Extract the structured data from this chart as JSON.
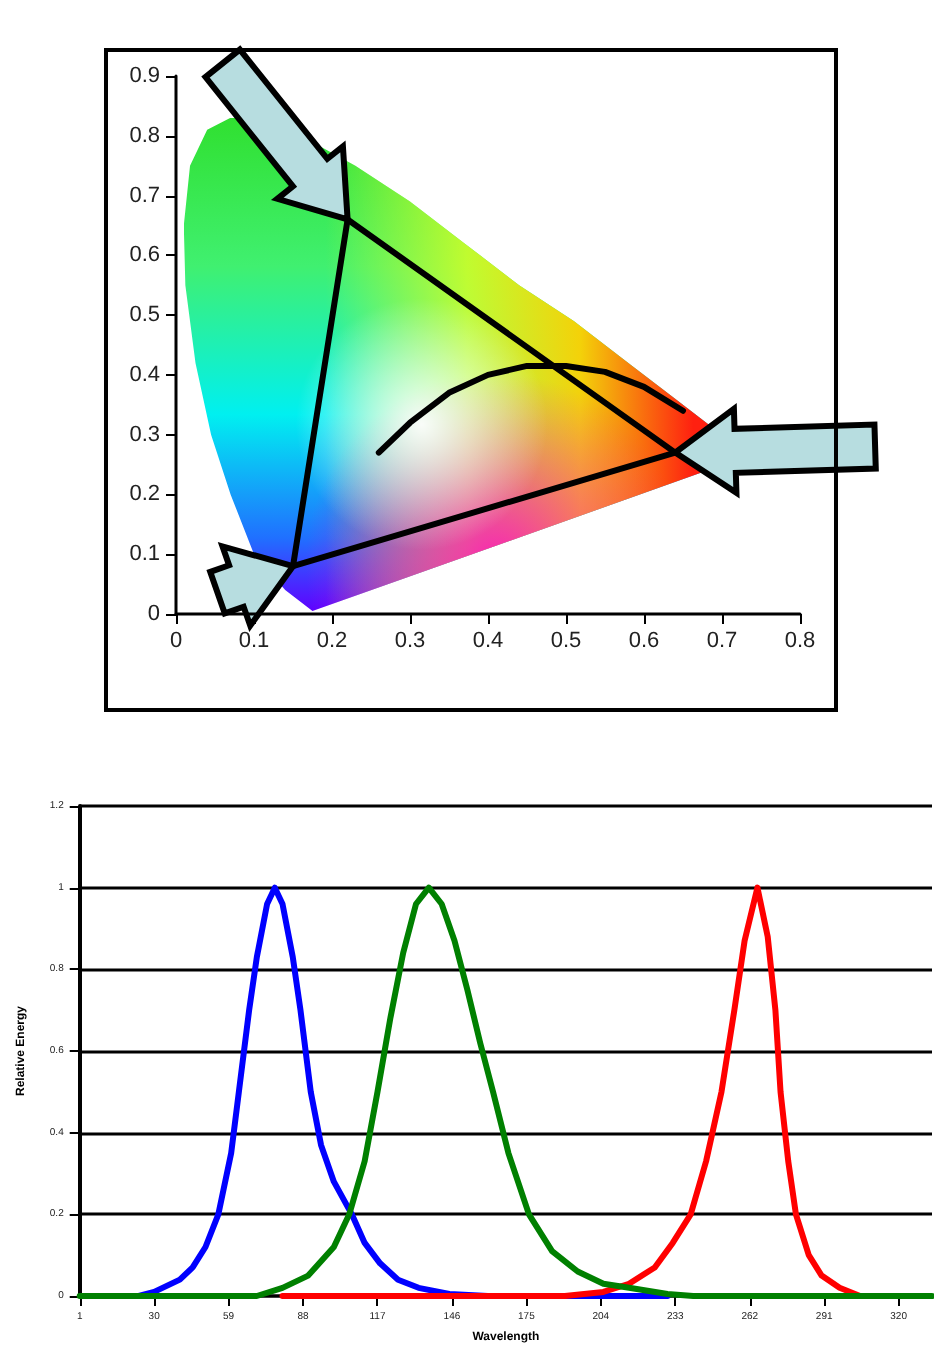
{
  "chart_data": [
    {
      "type": "line",
      "xlim": [
        0,
        0.8
      ],
      "xticks": [
        0,
        0.1,
        0.2,
        0.3,
        0.4,
        0.5,
        0.6,
        0.7,
        0.8
      ],
      "ylim": [
        0,
        0.9
      ],
      "yticks": [
        0,
        0.1,
        0.2,
        0.3,
        0.4,
        0.5,
        0.6,
        0.7,
        0.8,
        0.9
      ],
      "grid": false,
      "marker": "none",
      "line_style": "solid",
      "series": [
        {
          "color": "#000000",
          "x": [
            0.15,
            0.22
          ],
          "values": [
            0.08,
            0.66
          ]
        },
        {
          "color": "#000000",
          "x": [
            0.22,
            0.64
          ],
          "values": [
            0.66,
            0.27
          ]
        },
        {
          "color": "#000000",
          "x": [
            0.15,
            0.64
          ],
          "values": [
            0.08,
            0.27
          ]
        },
        {
          "color": "#000000",
          "x": [
            0.26,
            0.3,
            0.35,
            0.4,
            0.45,
            0.5,
            0.55,
            0.6,
            0.65
          ],
          "values": [
            0.27,
            0.32,
            0.37,
            0.4,
            0.415,
            0.415,
            0.405,
            0.38,
            0.34
          ]
        }
      ]
    },
    {
      "type": "line",
      "xlabel": "Wavelength",
      "ylabel": "Relative Energy",
      "xlim": [
        1,
        333
      ],
      "xticks": [
        1,
        30,
        59,
        88,
        117,
        146,
        175,
        204,
        233,
        262,
        291,
        320
      ],
      "ylim": [
        0,
        1.2
      ],
      "yticks": [
        0,
        0.2,
        0.4,
        0.6,
        0.8,
        1,
        1.2
      ],
      "grid": "y",
      "marker": "none",
      "line_style": "solid",
      "series": [
        {
          "color": "#0000ff",
          "x": [
            24,
            30,
            40,
            45,
            50,
            55,
            60,
            63,
            67,
            70,
            74,
            77,
            80,
            84,
            87,
            91,
            95,
            100,
            107,
            112,
            118,
            125,
            133,
            145,
            160,
            230
          ],
          "values": [
            0,
            0.01,
            0.04,
            0.07,
            0.12,
            0.2,
            0.35,
            0.5,
            0.7,
            0.83,
            0.96,
            1,
            0.96,
            0.83,
            0.7,
            0.5,
            0.37,
            0.28,
            0.2,
            0.13,
            0.08,
            0.04,
            0.02,
            0.005,
            0,
            0
          ]
        },
        {
          "color": "#ff0000",
          "x": [
            80,
            190,
            205,
            215,
            225,
            232,
            239,
            245,
            251,
            256,
            260,
            265,
            269,
            272,
            274,
            277,
            280,
            285,
            290,
            297,
            305
          ],
          "values": [
            0,
            0,
            0.01,
            0.03,
            0.07,
            0.13,
            0.2,
            0.33,
            0.5,
            0.7,
            0.87,
            1,
            0.88,
            0.7,
            0.5,
            0.33,
            0.2,
            0.1,
            0.05,
            0.02,
            0
          ]
        },
        {
          "color": "#008000",
          "x": [
            1,
            70,
            80,
            90,
            100,
            106,
            112,
            117,
            122,
            127,
            132,
            137,
            142,
            147,
            152,
            157,
            162,
            168,
            176,
            185,
            195,
            205,
            215,
            230,
            240,
            333
          ],
          "values": [
            0,
            0,
            0.02,
            0.05,
            0.12,
            0.2,
            0.33,
            0.5,
            0.68,
            0.84,
            0.96,
            1,
            0.96,
            0.87,
            0.75,
            0.62,
            0.5,
            0.35,
            0.2,
            0.11,
            0.06,
            0.03,
            0.02,
            0.005,
            0,
            0
          ]
        }
      ]
    }
  ]
}
